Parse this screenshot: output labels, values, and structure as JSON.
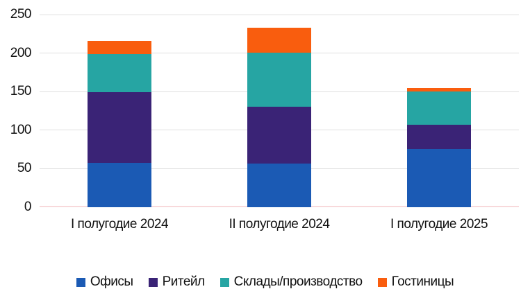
{
  "chart_data": {
    "type": "bar",
    "stacked": true,
    "title": "",
    "xlabel": "",
    "ylabel": "",
    "categories": [
      "I полугодие 2024",
      "II полугодие 2024",
      "I полугодие 2025"
    ],
    "series": [
      {
        "key": "offices",
        "name": "Офисы",
        "color": "#1b5ab4",
        "values": [
          58,
          57,
          76
        ]
      },
      {
        "key": "retail",
        "name": "Ритейл",
        "color": "#3a2376",
        "values": [
          91,
          73,
          31
        ]
      },
      {
        "key": "warehouses",
        "name": "Склады/производство",
        "color": "#26a5a3",
        "values": [
          50,
          71,
          43
        ]
      },
      {
        "key": "hotels",
        "name": "Гостиницы",
        "color": "#f95d0e",
        "values": [
          17,
          32,
          5
        ]
      }
    ],
    "totals": [
      216,
      233,
      155
    ],
    "ylim": [
      0,
      250
    ],
    "y_ticks": [
      0,
      50,
      100,
      150,
      200,
      250
    ],
    "grid": true,
    "legend_position": "bottom"
  },
  "colors": {
    "gridline": "#dedede",
    "zero_line": "#f8d9db",
    "text": "#111111",
    "background": "#ffffff"
  }
}
